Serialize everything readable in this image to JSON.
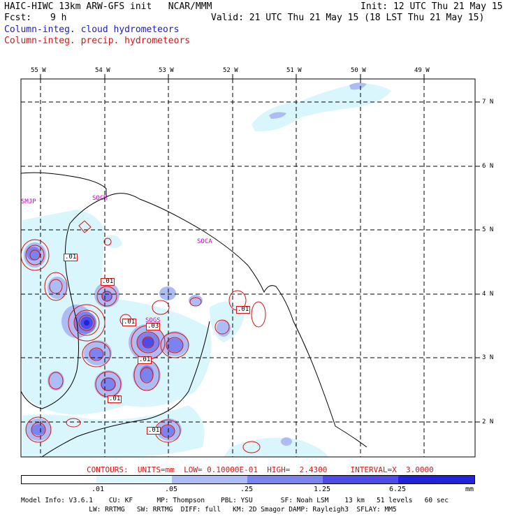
{
  "header": {
    "title_left": "HAIC-HIWC 13km ARW-GFS init   NCAR/MMM",
    "title_right": "Init: 12 UTC Thu 21 May 15",
    "fcst_label": "Fcst:",
    "fcst_value": "9 h",
    "valid": "Valid: 21 UTC Thu 21 May 15 (18 LST Thu 21 May 15)",
    "field_cloud": "Column-integ. cloud hydrometeors",
    "field_precip": "Column-integ. precip. hydrometeors"
  },
  "map": {
    "lon_labels": [
      "55 W",
      "54 W",
      "53 W",
      "52 W",
      "51 W",
      "50 W",
      "49 W"
    ],
    "lat_labels": [
      "7 N",
      "6 N",
      "5 N",
      "4 N",
      "3 N",
      "2 N"
    ],
    "places": [
      "SMJP",
      "SOCM",
      "SOCA",
      "SOGS"
    ],
    "contour_labels": [
      ".01",
      ".01",
      ".01",
      ".01",
      ".03",
      ".01",
      ".01",
      ".01",
      ".01"
    ],
    "colors": {
      "shade1": "#d8f6fb",
      "shade2": "#aebcf5",
      "shade3": "#7b83ef",
      "shade4": "#4d4ce8",
      "shade5": "#2222dd",
      "precip_contour": "#dd1111",
      "cloud_text": "#1a1acc"
    }
  },
  "contours_info": "CONTOURS:  UNITS=mm  LOW= 0.10000E-01  HIGH=  2.4300     INTERVAL=X  3.0000",
  "colorbar": {
    "values": [
      ".01",
      ".05",
      ".25",
      "1.25",
      "6.25"
    ],
    "unit": "mm",
    "colors": [
      "#ffffff",
      "#d8f6fb",
      "#aebcf5",
      "#7b83ef",
      "#4d4ce8",
      "#2222dd"
    ]
  },
  "footer": {
    "line1": "Model Info: V3.6.1    CU: KF      MP: Thompson    PBL: YSU       SF: Noah LSM    13 km   51 levels   60 sec",
    "line2": "                 LW: RRTMG   SW: RRTMG  DIFF: full   KM: 2D Smagor DAMP: Rayleigh3  SFLAY: MM5"
  }
}
